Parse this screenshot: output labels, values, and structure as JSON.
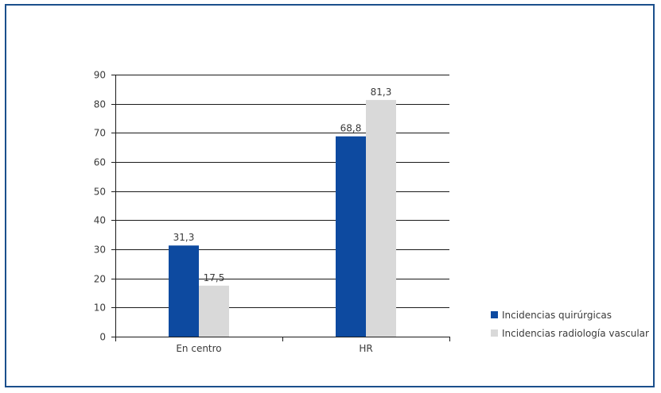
{
  "chart_data": {
    "type": "bar",
    "categories": [
      "En centro",
      "HR"
    ],
    "series": [
      {
        "name": "Incidencias quirúrgicas",
        "values": [
          31.3,
          68.8
        ],
        "labels": [
          "31,3",
          "68,8"
        ],
        "color": "#0d4aa0"
      },
      {
        "name": "Incidencias radiología vascular",
        "values": [
          17.5,
          81.3
        ],
        "labels": [
          "17,5",
          "81,3"
        ],
        "color": "#d9d9d9"
      }
    ],
    "title": "",
    "xlabel": "",
    "ylabel": "",
    "ylim": [
      0,
      90
    ],
    "yticks": [
      0,
      10,
      20,
      30,
      40,
      50,
      60,
      70,
      80,
      90
    ],
    "grid": true,
    "legend_position": "bottom-right"
  }
}
